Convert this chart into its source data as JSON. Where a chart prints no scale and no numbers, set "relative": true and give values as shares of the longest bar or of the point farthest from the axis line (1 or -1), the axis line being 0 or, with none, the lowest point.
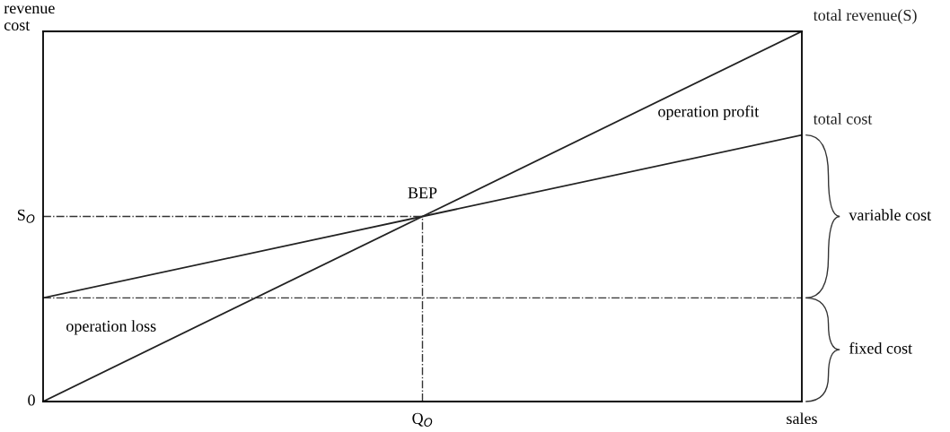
{
  "chart_data": {
    "type": "line",
    "relative": true,
    "ylabel": "revenue\ncost",
    "xlabel": "sales",
    "categories": [
      null,
      null,
      null
    ],
    "series": [
      {
        "name": "total revenue(S)",
        "color": "#222222",
        "values": [
          0,
          0.5,
          1
        ]
      },
      {
        "name": "total cost",
        "color": "#222222",
        "values": [
          0.28,
          0.5,
          0.72
        ]
      }
    ],
    "ref_lines": [
      {
        "axis": "y",
        "value": 0.5,
        "label": "S$_{O}$",
        "line_style": "dashdot"
      },
      {
        "axis": "y",
        "value": 0.28,
        "line_style": "dashdot"
      }
    ],
    "annotations": [
      "BEP",
      "operation profit",
      "operation loss",
      "variable cost",
      "fixed cost",
      "Q$_{O}$",
      "0"
    ],
    "grid": false,
    "legend": false,
    "marker": "none",
    "line_style": "solid"
  }
}
